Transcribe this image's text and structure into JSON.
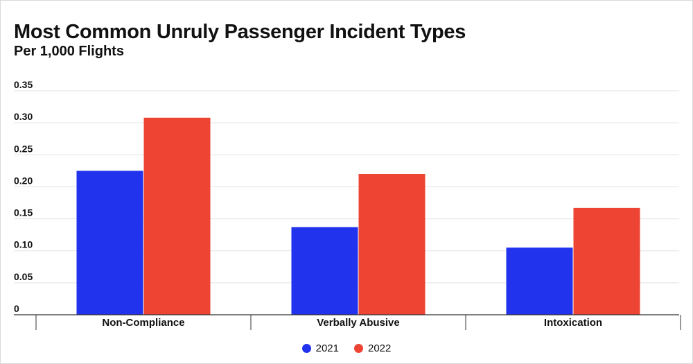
{
  "header": {
    "title": "Most Common Unruly Passenger Incident Types",
    "subtitle": "Per 1,000 Flights"
  },
  "colors": {
    "series_2021": "#2233ee",
    "series_2022": "#ee4433",
    "grid": "#e3e3e3",
    "axis": "#333333"
  },
  "chart_data": {
    "type": "bar",
    "title": "Most Common Unruly Passenger Incident Types",
    "subtitle": "Per 1,000 Flights",
    "xlabel": "",
    "ylabel": "",
    "ylim": [
      0,
      0.35
    ],
    "y_ticks": [
      "0",
      "0.05",
      "0.10",
      "0.15",
      "0.20",
      "0.25",
      "0.30",
      "0.35"
    ],
    "y_tick_values": [
      0,
      0.05,
      0.1,
      0.15,
      0.2,
      0.25,
      0.3,
      0.35
    ],
    "categories": [
      "Non-Compliance",
      "Verbally Abusive",
      "Intoxication"
    ],
    "series": [
      {
        "name": "2021",
        "color": "#2233ee",
        "values": [
          0.225,
          0.137,
          0.105
        ]
      },
      {
        "name": "2022",
        "color": "#ee4433",
        "values": [
          0.308,
          0.22,
          0.167
        ]
      }
    ],
    "grid": true,
    "legend_position": "bottom-center"
  }
}
